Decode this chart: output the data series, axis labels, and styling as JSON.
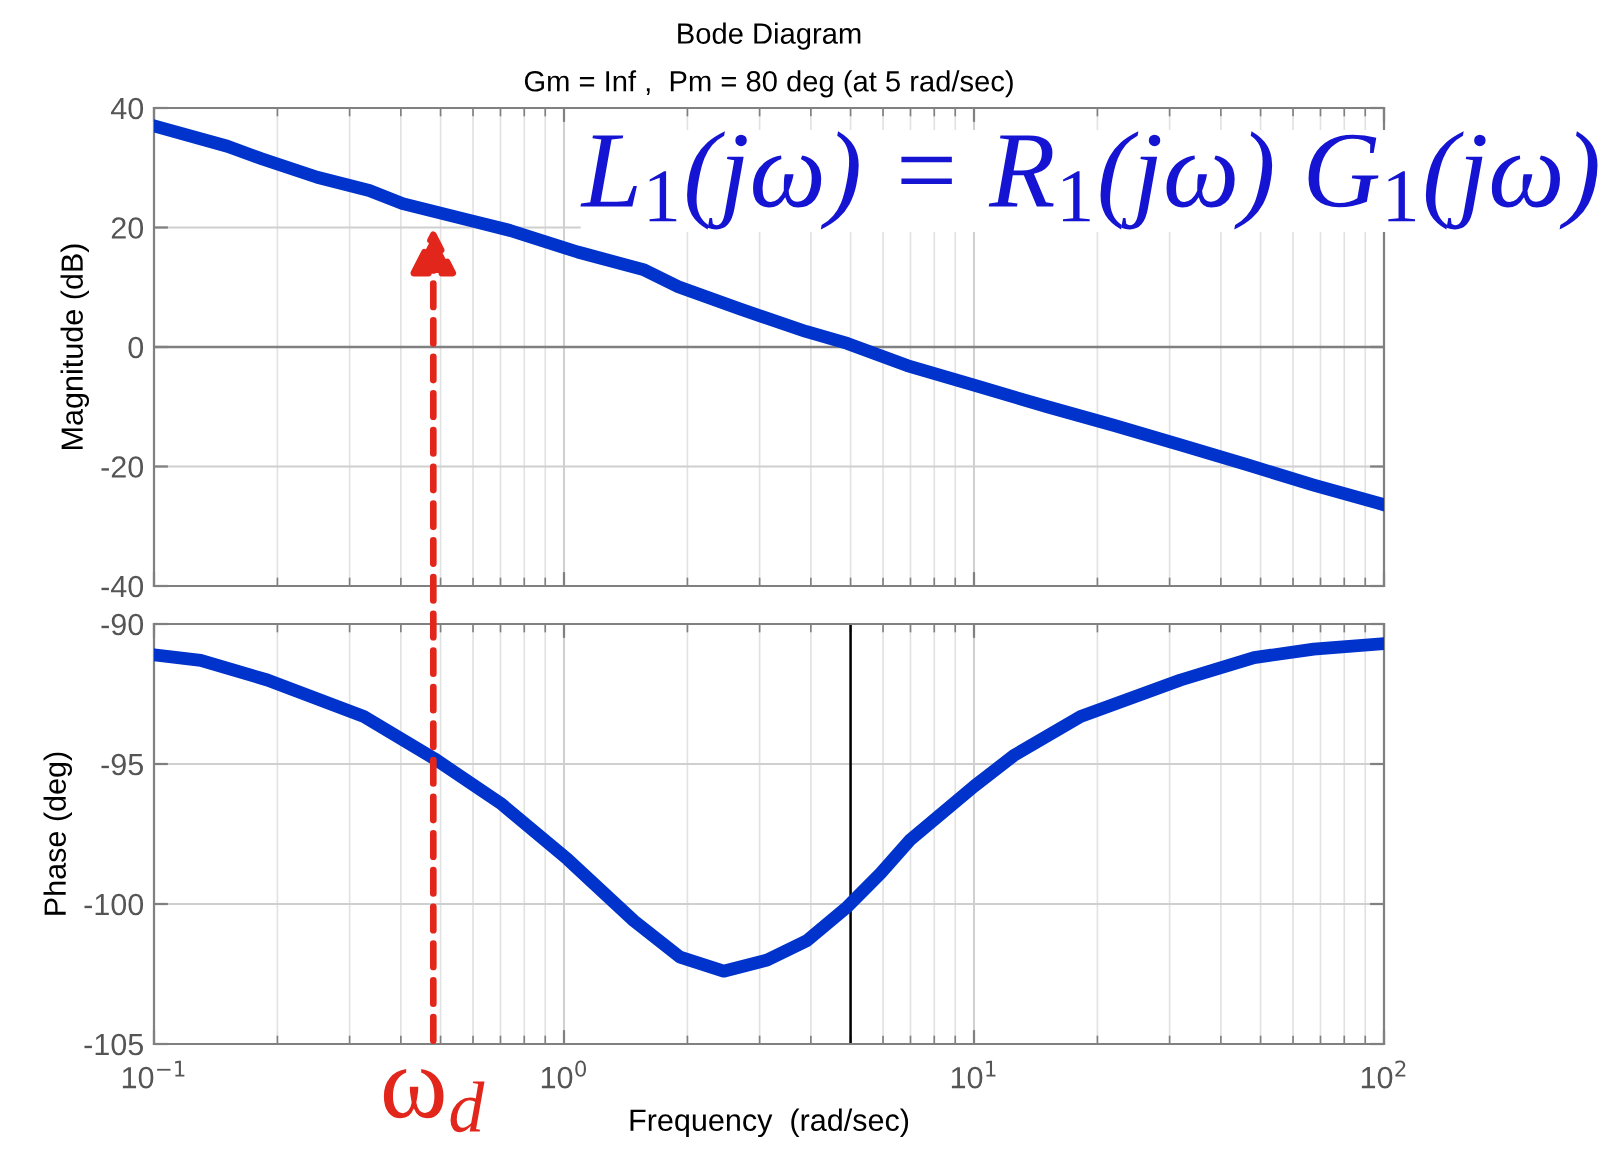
{
  "chart_data": [
    {
      "type": "line",
      "title": "Bode Diagram",
      "subtitle": "Gm = Inf ,  Pm = 80 deg (at 5 rad/sec)",
      "ylabel": "Magnitude (dB)",
      "x": [
        0.1,
        0.151,
        0.183,
        0.25,
        0.335,
        0.404,
        0.589,
        0.739,
        1.08,
        1.57,
        1.9,
        2.7,
        3.89,
        4.91,
        6.87,
        10,
        15.1,
        21.9,
        31.9,
        46.3,
        67.4,
        100
      ],
      "series": [
        {
          "color": "#0033cc",
          "values": [
            37.0,
            33.6,
            31.5,
            28.4,
            26.2,
            24.0,
            21.2,
            19.5,
            15.9,
            12.9,
            10.1,
            6.3,
            2.6,
            0.6,
            -3.1,
            -6.4,
            -10.0,
            -13.1,
            -16.4,
            -19.7,
            -23.1,
            -26.4
          ]
        }
      ],
      "log": "x",
      "xlim": [
        0.1,
        100
      ],
      "ylim": [
        -40,
        40
      ],
      "yticks": [
        -40,
        -20,
        0,
        20,
        40
      ],
      "grid": true,
      "tick_labels": "y",
      "ref_lines": [
        {
          "axis": "y",
          "value": 0,
          "color": "#808080"
        }
      ],
      "annotations": [
        "L$_{1}$(jω) = R$_{1}$(jω) G$_{1}$(jω)",
        {
          "text": "ω$_{d}$",
          "x": 0.48,
          "y": 20
        }
      ]
    },
    {
      "type": "line",
      "xlabel": "Frequency  (rad/sec)",
      "ylabel": "Phase (deg)",
      "x": [
        0.1,
        0.13,
        0.189,
        0.325,
        0.482,
        0.7,
        1.02,
        1.48,
        1.92,
        2.45,
        3.13,
        3.92,
        4.91,
        5.92,
        7.0,
        10,
        12.5,
        18.2,
        31.9,
        48.2,
        67.4,
        100
      ],
      "series": [
        {
          "color": "#0033cc",
          "values": [
            -91.1,
            -91.3,
            -92.0,
            -93.3,
            -94.8,
            -96.4,
            -98.4,
            -100.6,
            -101.9,
            -102.4,
            -102.0,
            -101.3,
            -100.1,
            -98.9,
            -97.7,
            -95.8,
            -94.7,
            -93.3,
            -92.0,
            -91.2,
            -90.9,
            -90.7
          ]
        }
      ],
      "log": "x",
      "xlim": [
        0.1,
        100
      ],
      "xticks": [
        {
          "value": 0.1,
          "label": "10$^{−1}$"
        },
        {
          "value": 1,
          "label": "10$^{0}$"
        },
        {
          "value": 10,
          "label": "10$^{1}$"
        },
        {
          "value": 100,
          "label": "10$^{2}$"
        }
      ],
      "ylim": [
        -105,
        -90
      ],
      "yticks": [
        -105,
        -100,
        -95,
        -90
      ],
      "grid": true,
      "ref_lines": [
        {
          "axis": "x",
          "value": 5,
          "color": "#000000"
        }
      ]
    }
  ]
}
